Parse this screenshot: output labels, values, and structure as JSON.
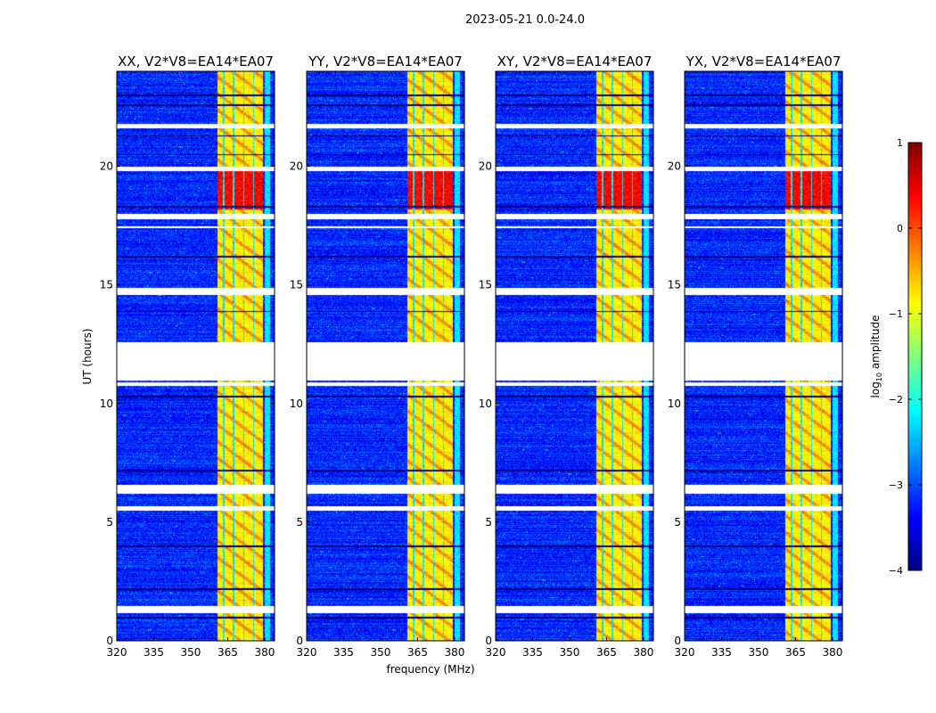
{
  "chart_data": {
    "type": "heatmap",
    "title": "2023-05-21 0.0-24.0",
    "xlabel": "frequency (MHz)",
    "ylabel": "UT (hours)",
    "xlim": [
      320,
      384
    ],
    "ylim": [
      0,
      24
    ],
    "xticks": [
      "320",
      "335",
      "350",
      "365",
      "380"
    ],
    "xtick_values": [
      320,
      335,
      350,
      365,
      380
    ],
    "yticks": [
      "0",
      "5",
      "10",
      "15",
      "20"
    ],
    "ytick_values": [
      0,
      5,
      10,
      15,
      20
    ],
    "panels": [
      {
        "title": "XX, V2*V8=EA14*EA07"
      },
      {
        "title": "YY, V2*V8=EA14*EA07"
      },
      {
        "title": "XY, V2*V8=EA14*EA07"
      },
      {
        "title": "YX, V2*V8=EA14*EA07"
      }
    ],
    "background_level": -3.2,
    "rfi_band_mhz": [
      360.5,
      379
    ],
    "rfi_level": -0.8,
    "strong_rfi_hours": [
      18.2,
      19.8
    ],
    "strong_rfi_level": 0.4,
    "flagged_hours": [
      [
        11.0,
        12.6
      ],
      [
        21.6,
        21.8
      ],
      [
        19.8,
        20.0
      ],
      [
        17.8,
        18.0
      ],
      [
        17.4,
        17.5
      ],
      [
        14.6,
        14.9
      ],
      [
        6.2,
        6.6
      ],
      [
        5.5,
        5.7
      ],
      [
        1.2,
        1.5
      ],
      [
        10.75,
        10.9
      ]
    ],
    "colorbar": {
      "label": "log10 amplitude",
      "label_main": "log",
      "label_sub": "10",
      "label_rest": " amplitude",
      "range": [
        -4,
        1
      ],
      "ticks": [
        "1",
        "0",
        "−1",
        "−2",
        "−3",
        "−4"
      ],
      "tick_values": [
        1,
        0,
        -1,
        -2,
        -3,
        -4
      ],
      "colormap": "jet"
    }
  }
}
